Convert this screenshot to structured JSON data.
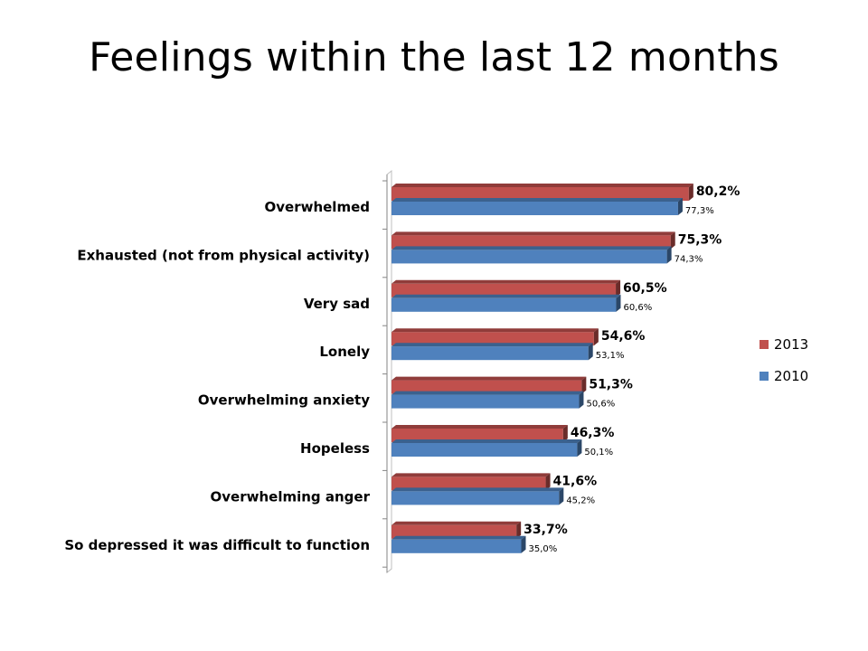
{
  "title": "Feelings within the last 12 months",
  "chart_data": {
    "type": "bar",
    "orientation": "horizontal",
    "categories": [
      "Overwhelmed",
      "Exhausted (not from physical activity)",
      "Very sad",
      "Lonely",
      "Overwhelming anxiety",
      "Hopeless",
      "Overwhelming anger",
      "So depressed it was difficult to function"
    ],
    "series": [
      {
        "name": "2013",
        "color": "#C0504D",
        "values": [
          80.2,
          75.3,
          60.5,
          54.6,
          51.3,
          46.3,
          41.6,
          33.7
        ],
        "labels": [
          "80,2%",
          "75,3%",
          "60,5%",
          "54,6%",
          "51,3%",
          "46,3%",
          "41,6%",
          "33,7%"
        ]
      },
      {
        "name": "2010",
        "color": "#4F81BD",
        "values": [
          77.3,
          74.3,
          60.6,
          53.1,
          50.6,
          50.1,
          45.2,
          35.0
        ],
        "labels": [
          "77,3%",
          "74,3%",
          "60,6%",
          "53,1%",
          "50,6%",
          "50,1%",
          "45,2%",
          "35,0%"
        ]
      }
    ],
    "xlim": [
      0,
      100
    ],
    "grid": false,
    "legend_position": "right",
    "style": "3d-clustered-bar"
  }
}
